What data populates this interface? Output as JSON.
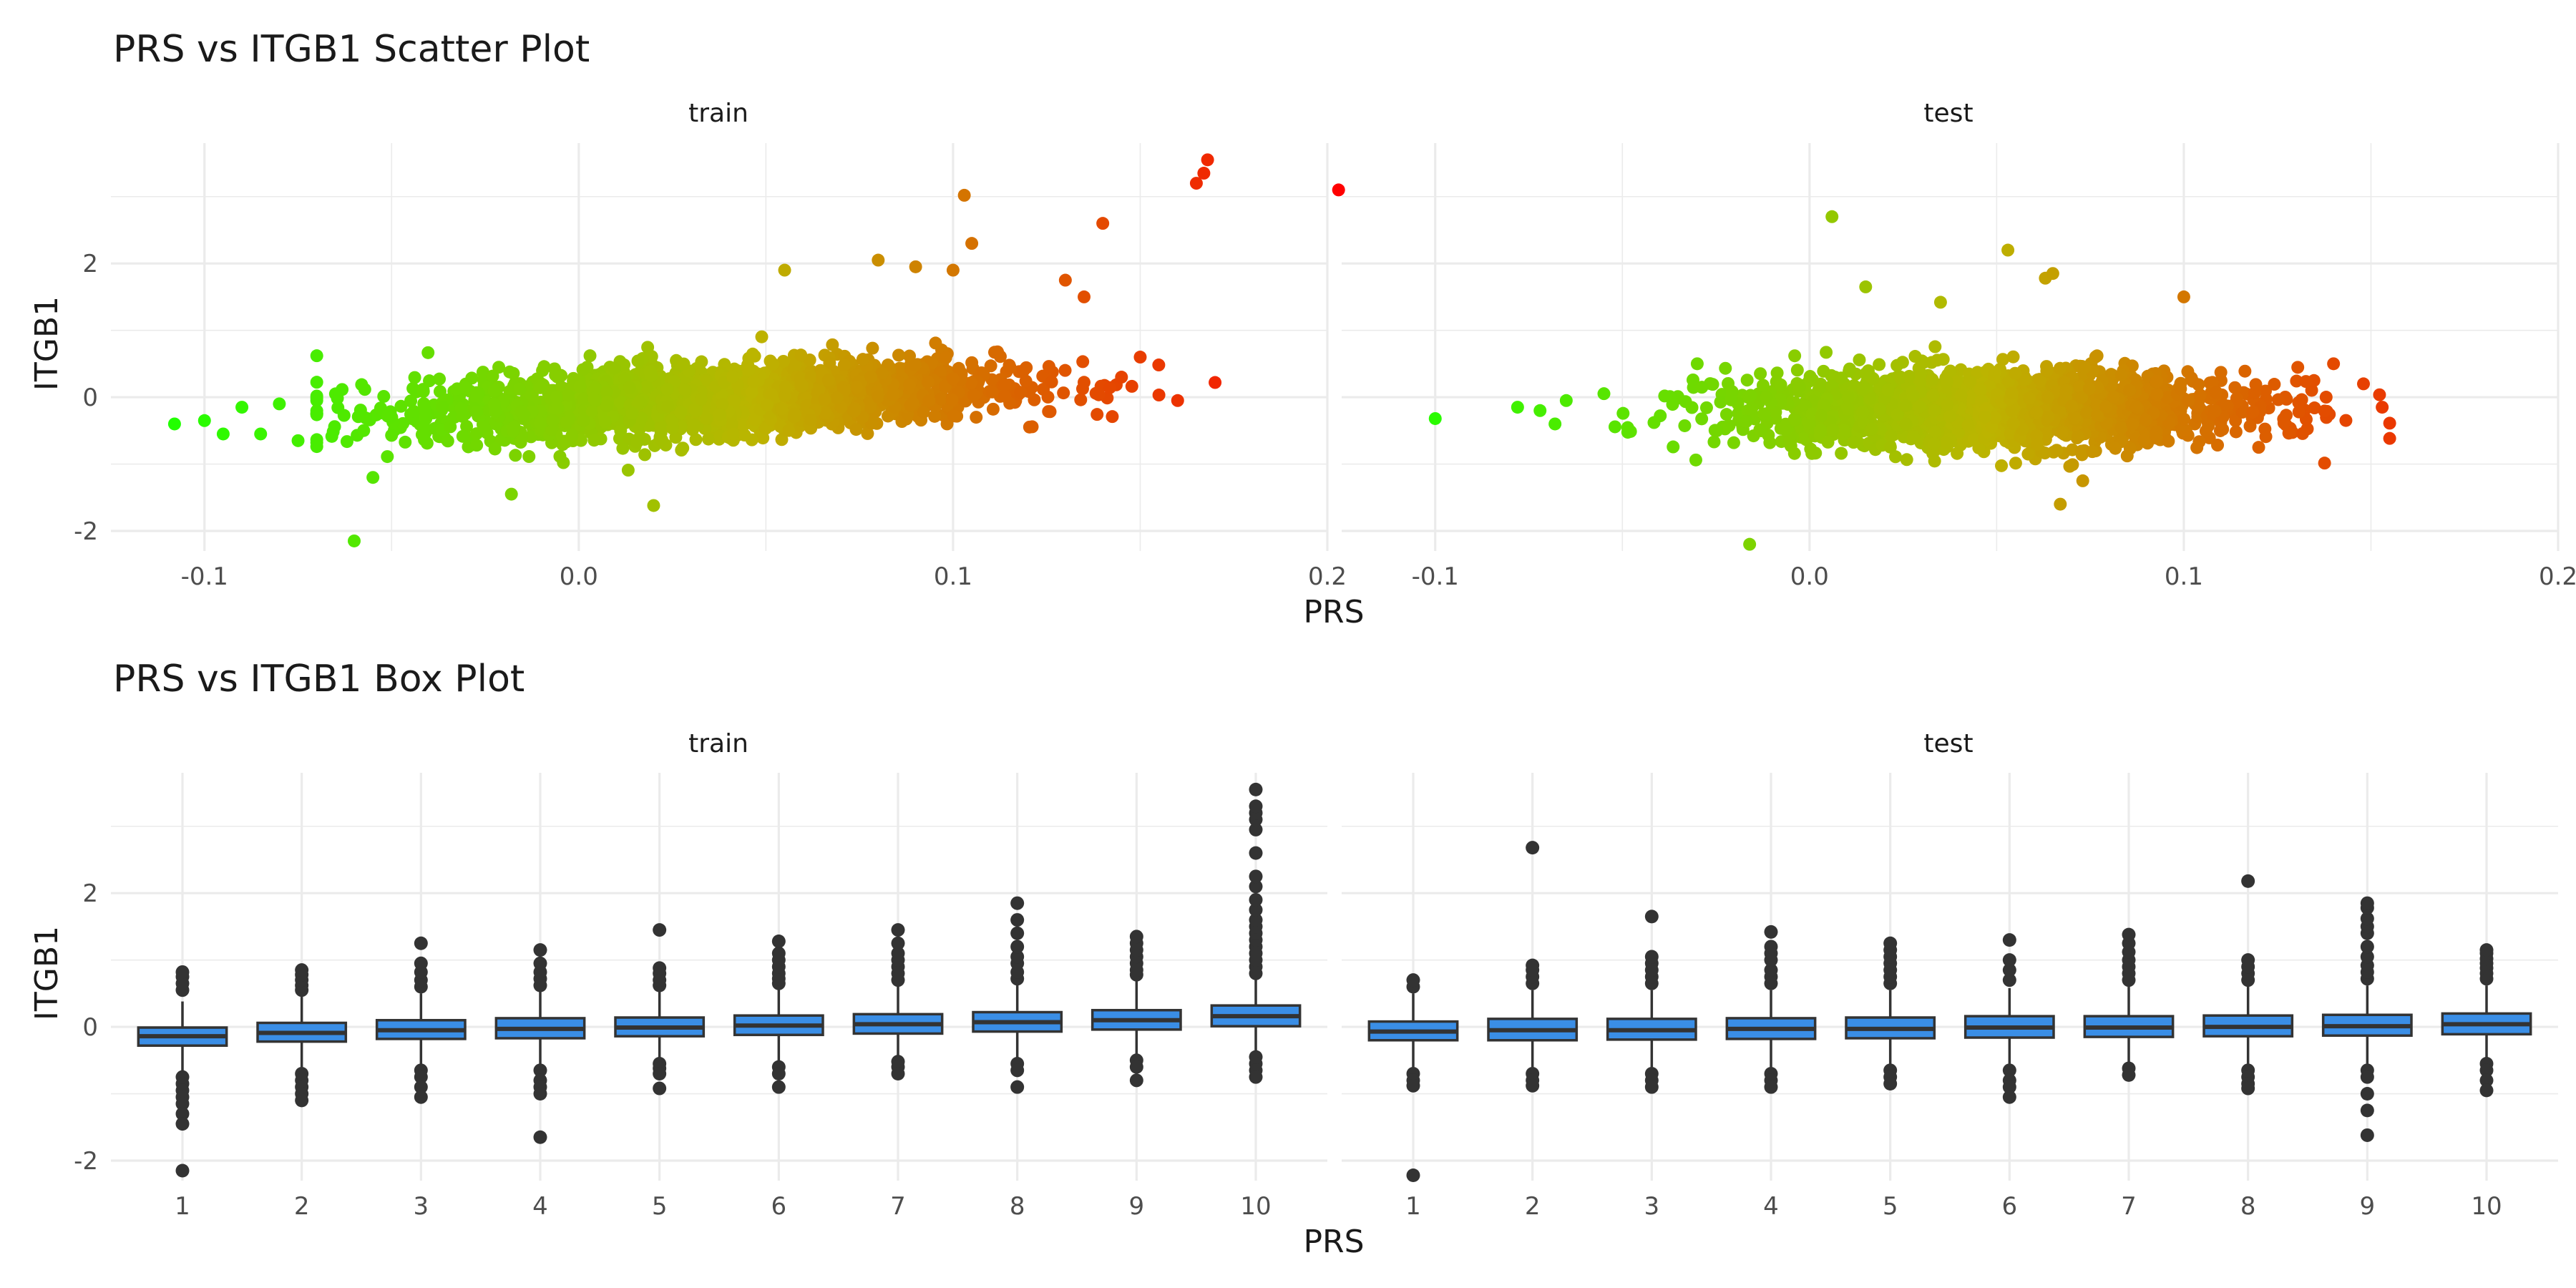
{
  "figure": {
    "scatter_title": "PRS vs ITGB1 Scatter Plot",
    "box_title": "PRS vs ITGB1 Box Plot"
  },
  "chart_data": [
    {
      "type": "scatter",
      "title": "PRS vs ITGB1 Scatter Plot",
      "xlabel": "PRS",
      "ylabel": "ITGB1",
      "xlim": [
        -0.125,
        0.2
      ],
      "ylim": [
        -2.3,
        3.8
      ],
      "x_ticks": [
        -0.1,
        0.0,
        0.1,
        0.2
      ],
      "x_tick_labels": [
        "-0.1",
        "0.0",
        "0.1",
        "0.2"
      ],
      "y_ticks": [
        -2,
        0,
        2
      ],
      "y_tick_labels": [
        "-2",
        "0",
        "2"
      ],
      "grid": true,
      "color_scale": {
        "low": "#22ff00",
        "mid": "#bcb400",
        "high": "#ff0000",
        "by": "PRS"
      },
      "panels": [
        {
          "name": "train",
          "cloud": {
            "n": 2400,
            "x_mean": 0.035,
            "x_sd": 0.038,
            "y_intercept": -0.12,
            "y_slope": 2.6,
            "y_sd": 0.25
          },
          "points": [
            [
              -0.108,
              -0.4
            ],
            [
              -0.1,
              -0.35
            ],
            [
              -0.095,
              -0.55
            ],
            [
              -0.09,
              -0.15
            ],
            [
              -0.085,
              -0.55
            ],
            [
              -0.08,
              -0.1
            ],
            [
              -0.075,
              -0.65
            ],
            [
              -0.07,
              0.62
            ],
            [
              -0.065,
              0.05
            ],
            [
              -0.06,
              -2.15
            ],
            [
              -0.055,
              -1.2
            ],
            [
              0.02,
              -1.62
            ],
            [
              -0.018,
              -1.45
            ],
            [
              0.003,
              0.62
            ],
            [
              0.055,
              1.9
            ],
            [
              0.08,
              2.05
            ],
            [
              0.09,
              1.95
            ],
            [
              0.1,
              1.9
            ],
            [
              0.103,
              3.02
            ],
            [
              0.105,
              2.3
            ],
            [
              0.13,
              1.75
            ],
            [
              0.14,
              2.6
            ],
            [
              0.135,
              1.5
            ],
            [
              0.165,
              3.2
            ],
            [
              0.167,
              3.35
            ],
            [
              0.168,
              3.55
            ],
            [
              0.203,
              3.1
            ],
            [
              0.17,
              0.22
            ],
            [
              0.16,
              -0.05
            ],
            [
              0.15,
              0.6
            ],
            [
              0.145,
              0.3
            ]
          ]
        },
        {
          "name": "test",
          "cloud": {
            "n": 1800,
            "x_mean": 0.048,
            "x_sd": 0.035,
            "y_intercept": -0.18,
            "y_slope": 0.3,
            "y_sd": 0.28
          },
          "points": [
            [
              -0.1,
              -0.32
            ],
            [
              -0.078,
              -0.15
            ],
            [
              -0.072,
              -0.2
            ],
            [
              -0.068,
              -0.4
            ],
            [
              -0.065,
              -0.05
            ],
            [
              -0.016,
              -2.2
            ],
            [
              0.006,
              2.7
            ],
            [
              0.015,
              1.65
            ],
            [
              0.053,
              2.2
            ],
            [
              0.063,
              1.78
            ],
            [
              0.065,
              1.85
            ],
            [
              0.067,
              -1.6
            ],
            [
              0.073,
              -1.25
            ],
            [
              0.035,
              1.42
            ],
            [
              0.14,
              0.5
            ],
            [
              0.148,
              0.2
            ],
            [
              0.153,
              -0.15
            ],
            [
              0.12,
              -0.75
            ],
            [
              0.1,
              1.5
            ],
            [
              -0.03,
              0.5
            ]
          ]
        }
      ]
    },
    {
      "type": "box",
      "title": "PRS vs ITGB1 Box Plot",
      "xlabel": "PRS",
      "ylabel": "ITGB1",
      "categories": [
        "1",
        "2",
        "3",
        "4",
        "5",
        "6",
        "7",
        "8",
        "9",
        "10"
      ],
      "ylim": [
        -2.3,
        3.8
      ],
      "y_ticks": [
        -2,
        0,
        2
      ],
      "y_tick_labels": [
        "-2",
        "0",
        "2"
      ],
      "grid": true,
      "box_color": "#3a8ee6",
      "panels": [
        {
          "name": "train",
          "boxes": [
            {
              "q1": -0.28,
              "median": -0.14,
              "q3": -0.01,
              "wlo": -0.66,
              "whi": 0.38,
              "outliers": [
                0.55,
                0.65,
                0.75,
                0.82,
                -0.75,
                -0.85,
                -0.95,
                -1.05,
                -1.15,
                -1.3,
                -1.45,
                -2.15
              ]
            },
            {
              "q1": -0.22,
              "median": -0.09,
              "q3": 0.06,
              "wlo": -0.6,
              "whi": 0.45,
              "outliers": [
                0.55,
                0.62,
                0.7,
                0.78,
                0.85,
                -0.7,
                -0.8,
                -0.9,
                -1.0,
                -1.1
              ]
            },
            {
              "q1": -0.18,
              "median": -0.05,
              "q3": 0.1,
              "wlo": -0.58,
              "whi": 0.5,
              "outliers": [
                0.6,
                0.7,
                0.82,
                0.95,
                1.25,
                -0.65,
                -0.75,
                -0.9,
                -1.05
              ]
            },
            {
              "q1": -0.17,
              "median": -0.03,
              "q3": 0.13,
              "wlo": -0.58,
              "whi": 0.55,
              "outliers": [
                0.62,
                0.72,
                0.82,
                0.95,
                1.15,
                -0.65,
                -0.8,
                -0.9,
                -1.0,
                -1.65
              ]
            },
            {
              "q1": -0.14,
              "median": -0.01,
              "q3": 0.14,
              "wlo": -0.55,
              "whi": 0.55,
              "outliers": [
                0.62,
                0.7,
                0.8,
                0.88,
                1.45,
                -0.55,
                -0.62,
                -0.7,
                -0.92
              ]
            },
            {
              "q1": -0.12,
              "median": 0.02,
              "q3": 0.17,
              "wlo": -0.55,
              "whi": 0.6,
              "outliers": [
                0.65,
                0.72,
                0.8,
                0.9,
                1.0,
                1.1,
                1.28,
                -0.6,
                -0.7,
                -0.9
              ]
            },
            {
              "q1": -0.1,
              "median": 0.04,
              "q3": 0.19,
              "wlo": -0.5,
              "whi": 0.62,
              "outliers": [
                0.7,
                0.8,
                0.9,
                1.0,
                1.1,
                1.25,
                1.45,
                -0.52,
                -0.6,
                -0.7
              ]
            },
            {
              "q1": -0.07,
              "median": 0.07,
              "q3": 0.22,
              "wlo": -0.5,
              "whi": 0.65,
              "outliers": [
                0.72,
                0.82,
                0.95,
                1.05,
                1.2,
                1.4,
                1.6,
                1.85,
                -0.55,
                -0.65,
                -0.9
              ]
            },
            {
              "q1": -0.04,
              "median": 0.1,
              "q3": 0.25,
              "wlo": -0.45,
              "whi": 0.7,
              "outliers": [
                0.78,
                0.85,
                0.95,
                1.05,
                1.15,
                1.25,
                1.35,
                -0.5,
                -0.6,
                -0.8
              ]
            },
            {
              "q1": 0.01,
              "median": 0.16,
              "q3": 0.32,
              "wlo": -0.4,
              "whi": 0.75,
              "outliers": [
                0.8,
                0.9,
                1.0,
                1.1,
                1.2,
                1.3,
                1.4,
                1.5,
                1.6,
                1.75,
                1.9,
                2.1,
                2.25,
                2.6,
                2.95,
                3.1,
                3.2,
                3.3,
                3.55,
                -0.45,
                -0.55,
                -0.65,
                -0.75
              ]
            }
          ]
        },
        {
          "name": "test",
          "boxes": [
            {
              "q1": -0.2,
              "median": -0.07,
              "q3": 0.08,
              "wlo": -0.6,
              "whi": 0.5,
              "outliers": [
                0.6,
                0.7,
                -0.7,
                -0.8,
                -0.88,
                -2.22
              ]
            },
            {
              "q1": -0.2,
              "median": -0.05,
              "q3": 0.12,
              "wlo": -0.6,
              "whi": 0.55,
              "outliers": [
                0.65,
                0.75,
                0.85,
                0.92,
                2.68,
                -0.7,
                -0.8,
                -0.88
              ]
            },
            {
              "q1": -0.19,
              "median": -0.05,
              "q3": 0.12,
              "wlo": -0.6,
              "whi": 0.55,
              "outliers": [
                0.65,
                0.75,
                0.85,
                0.95,
                1.05,
                1.65,
                -0.7,
                -0.8,
                -0.9
              ]
            },
            {
              "q1": -0.18,
              "median": -0.03,
              "q3": 0.13,
              "wlo": -0.6,
              "whi": 0.55,
              "outliers": [
                0.65,
                0.75,
                0.85,
                1.0,
                1.1,
                1.2,
                1.42,
                -0.7,
                -0.8,
                -0.9
              ]
            },
            {
              "q1": -0.17,
              "median": -0.03,
              "q3": 0.14,
              "wlo": -0.6,
              "whi": 0.55,
              "outliers": [
                0.65,
                0.75,
                0.85,
                0.95,
                1.05,
                1.15,
                1.25,
                -0.65,
                -0.75,
                -0.85
              ]
            },
            {
              "q1": -0.16,
              "median": -0.01,
              "q3": 0.16,
              "wlo": -0.55,
              "whi": 0.58,
              "outliers": [
                0.7,
                0.85,
                1.0,
                1.3,
                -0.65,
                -0.8,
                -0.9,
                -1.05
              ]
            },
            {
              "q1": -0.15,
              "median": -0.01,
              "q3": 0.16,
              "wlo": -0.55,
              "whi": 0.6,
              "outliers": [
                0.7,
                0.8,
                0.9,
                1.0,
                1.12,
                1.25,
                1.38,
                -0.62,
                -0.72
              ]
            },
            {
              "q1": -0.14,
              "median": 0.0,
              "q3": 0.17,
              "wlo": -0.55,
              "whi": 0.6,
              "outliers": [
                0.7,
                0.8,
                0.9,
                1.0,
                2.18,
                -0.65,
                -0.75,
                -0.85,
                -0.92
              ]
            },
            {
              "q1": -0.13,
              "median": 0.01,
              "q3": 0.18,
              "wlo": -0.55,
              "whi": 0.62,
              "outliers": [
                0.72,
                0.82,
                0.92,
                1.05,
                1.2,
                1.4,
                1.5,
                1.62,
                1.78,
                1.85,
                -0.65,
                -0.75,
                -1.0,
                -1.25,
                -1.62
              ]
            },
            {
              "q1": -0.11,
              "median": 0.04,
              "q3": 0.2,
              "wlo": -0.5,
              "whi": 0.62,
              "outliers": [
                0.72,
                0.8,
                0.88,
                0.95,
                1.02,
                1.1,
                1.15,
                -0.55,
                -0.65,
                -0.8,
                -0.95
              ]
            }
          ]
        }
      ]
    }
  ]
}
